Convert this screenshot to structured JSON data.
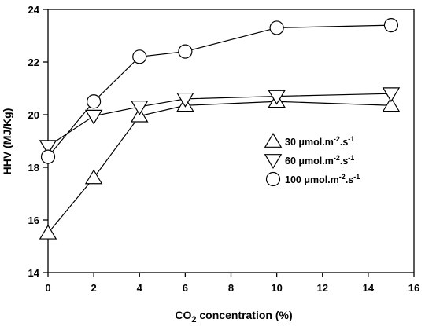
{
  "chart_data": {
    "type": "line",
    "title": "",
    "xlabel": "CO₂ concentration (%)",
    "ylabel": "HHV (MJ/Kg)",
    "xlim": [
      0,
      16
    ],
    "ylim": [
      14,
      24
    ],
    "xticks": [
      0,
      2,
      4,
      6,
      8,
      10,
      12,
      14,
      16
    ],
    "yticks": [
      14,
      16,
      18,
      20,
      22,
      24
    ],
    "grid": false,
    "legend_position": "right",
    "x": [
      0,
      2,
      4,
      6,
      10,
      15
    ],
    "series": [
      {
        "name": "30 μmol.m⁻².s⁻¹",
        "marker": "triangle-up",
        "values": [
          15.5,
          17.6,
          19.95,
          20.35,
          20.5,
          20.35
        ]
      },
      {
        "name": "60 μmol.m⁻².s⁻¹",
        "marker": "triangle-down",
        "values": [
          18.8,
          19.95,
          20.3,
          20.6,
          20.7,
          20.8
        ]
      },
      {
        "name": "100 μmol.m⁻².s⁻¹",
        "marker": "circle",
        "values": [
          18.4,
          20.5,
          22.2,
          22.4,
          23.3,
          23.4
        ]
      }
    ]
  }
}
